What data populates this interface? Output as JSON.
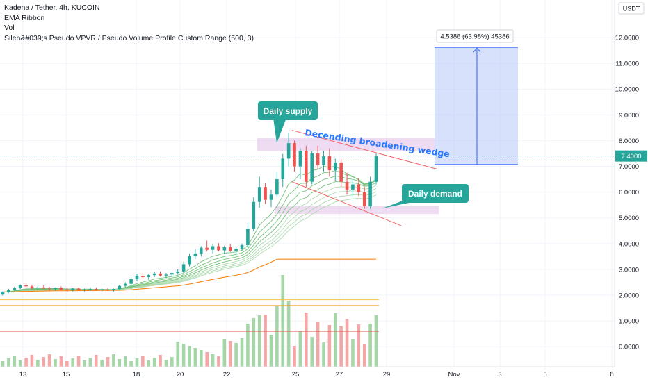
{
  "header": {
    "symbol_line": "Kadena / Tether, 4h, KUCOIN",
    "indicators": [
      "EMA Ribbon",
      "Vol",
      "Silen&#039;s Pseudo VPVR / Pseudo Volume Profile Custom Range (500, 3)"
    ]
  },
  "price_scale": {
    "currency": "USDT",
    "current_price": "7.4000"
  },
  "annotations": {
    "daily_supply": "Daily supply",
    "daily_demand": "Daily demand",
    "wedge": "Decending broadening wedge",
    "target_measure": "4.5386 (63.98%) 45386"
  },
  "chart_data": {
    "type": "candlestick",
    "y_ticks": [
      "12.0000",
      "11.0000",
      "10.0000",
      "9.0000",
      "8.0000",
      "7.0000",
      "6.0000",
      "5.0000",
      "4.0000",
      "3.0000",
      "2.0000",
      "1.0000",
      "0.0000"
    ],
    "y_tick_values": [
      12,
      11,
      10,
      9,
      8,
      7,
      6,
      5,
      4,
      3,
      2,
      1,
      0
    ],
    "ylim": [
      -0.85,
      13.3
    ],
    "x_ticks": [
      "13",
      "15",
      "18",
      "20",
      "22",
      "25",
      "27",
      "29",
      "Nov",
      "3",
      "5",
      "8"
    ],
    "supply_zone": [
      7.6,
      8.1
    ],
    "demand_zone": [
      5.15,
      5.45
    ],
    "target_box": {
      "from": 7.07,
      "to": 11.62
    },
    "current_price": 7.4,
    "horizontal_lines": [
      {
        "value": 1.82,
        "color": "#f5c242"
      },
      {
        "value": 1.6,
        "color": "#f0a020"
      },
      {
        "value": 0.6,
        "color": "#e05555"
      }
    ],
    "candles": [
      [
        2.02,
        2.15,
        1.98,
        2.12
      ],
      [
        2.12,
        2.25,
        2.08,
        2.2
      ],
      [
        2.2,
        2.32,
        2.16,
        2.28
      ],
      [
        2.28,
        2.42,
        2.24,
        2.38
      ],
      [
        2.38,
        2.46,
        2.3,
        2.34
      ],
      [
        2.34,
        2.4,
        2.22,
        2.28
      ],
      [
        2.28,
        2.36,
        2.2,
        2.3
      ],
      [
        2.3,
        2.38,
        2.24,
        2.26
      ],
      [
        2.26,
        2.32,
        2.18,
        2.24
      ],
      [
        2.24,
        2.3,
        2.18,
        2.28
      ],
      [
        2.28,
        2.34,
        2.2,
        2.22
      ],
      [
        2.22,
        2.28,
        2.14,
        2.2
      ],
      [
        2.2,
        2.28,
        2.14,
        2.26
      ],
      [
        2.26,
        2.3,
        2.18,
        2.2
      ],
      [
        2.2,
        2.26,
        2.14,
        2.22
      ],
      [
        2.22,
        2.3,
        2.16,
        2.24
      ],
      [
        2.24,
        2.3,
        2.18,
        2.2
      ],
      [
        2.2,
        2.26,
        2.14,
        2.22
      ],
      [
        2.22,
        2.28,
        2.16,
        2.2
      ],
      [
        2.2,
        2.26,
        2.14,
        2.24
      ],
      [
        2.24,
        2.4,
        2.2,
        2.36
      ],
      [
        2.36,
        2.5,
        2.3,
        2.44
      ],
      [
        2.44,
        2.7,
        2.38,
        2.62
      ],
      [
        2.62,
        2.82,
        2.54,
        2.74
      ],
      [
        2.74,
        2.86,
        2.64,
        2.7
      ],
      [
        2.7,
        2.82,
        2.6,
        2.78
      ],
      [
        2.78,
        2.9,
        2.7,
        2.84
      ],
      [
        2.84,
        2.92,
        2.72,
        2.76
      ],
      [
        2.76,
        2.86,
        2.66,
        2.8
      ],
      [
        2.8,
        2.9,
        2.72,
        2.86
      ],
      [
        2.86,
        3.0,
        2.8,
        2.92
      ],
      [
        2.92,
        3.3,
        2.86,
        3.2
      ],
      [
        3.2,
        3.62,
        3.12,
        3.52
      ],
      [
        3.52,
        3.78,
        3.4,
        3.62
      ],
      [
        3.62,
        3.9,
        3.5,
        3.84
      ],
      [
        3.84,
        4.12,
        3.7,
        3.76
      ],
      [
        3.76,
        3.98,
        3.62,
        3.9
      ],
      [
        3.9,
        4.02,
        3.7,
        3.74
      ],
      [
        3.74,
        3.92,
        3.6,
        3.86
      ],
      [
        3.86,
        3.98,
        3.68,
        3.72
      ],
      [
        3.72,
        3.86,
        3.6,
        3.8
      ],
      [
        3.8,
        4.0,
        3.72,
        3.94
      ],
      [
        3.94,
        4.8,
        3.86,
        4.58
      ],
      [
        4.58,
        5.8,
        4.48,
        5.62
      ],
      [
        5.62,
        6.6,
        5.4,
        6.2
      ],
      [
        6.2,
        6.34,
        5.54,
        5.7
      ],
      [
        5.7,
        6.1,
        5.42,
        5.9
      ],
      [
        5.9,
        6.78,
        5.8,
        6.5
      ],
      [
        6.5,
        7.48,
        6.2,
        7.3
      ],
      [
        7.3,
        8.3,
        7.0,
        7.9
      ],
      [
        7.9,
        8.0,
        6.8,
        7.0
      ],
      [
        7.0,
        7.7,
        6.5,
        7.6
      ],
      [
        7.6,
        7.8,
        6.2,
        6.4
      ],
      [
        6.4,
        7.6,
        6.3,
        7.5
      ],
      [
        7.5,
        7.8,
        6.9,
        7.05
      ],
      [
        7.05,
        7.6,
        6.8,
        7.4
      ],
      [
        7.4,
        7.7,
        6.6,
        6.85
      ],
      [
        6.85,
        7.3,
        6.45,
        7.15
      ],
      [
        7.15,
        7.3,
        6.2,
        6.4
      ],
      [
        6.4,
        6.75,
        5.9,
        6.1
      ],
      [
        6.1,
        6.5,
        5.8,
        6.3
      ],
      [
        6.3,
        6.55,
        5.85,
        6.0
      ],
      [
        6.0,
        6.2,
        5.35,
        5.45
      ],
      [
        5.45,
        6.6,
        5.35,
        6.4
      ],
      [
        6.4,
        7.5,
        6.3,
        7.4
      ]
    ]
  }
}
